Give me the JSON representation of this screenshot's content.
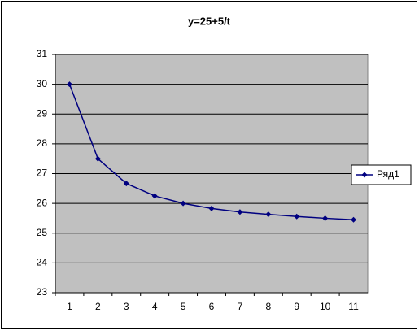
{
  "chart_data": {
    "type": "line",
    "title": "y=25+5/t",
    "categories": [
      "1",
      "2",
      "3",
      "4",
      "5",
      "6",
      "7",
      "8",
      "9",
      "10",
      "11"
    ],
    "series": [
      {
        "name": "Ряд1",
        "color": "#000080",
        "values": [
          30,
          27.5,
          26.67,
          26.25,
          26,
          25.83,
          25.71,
          25.63,
          25.56,
          25.5,
          25.45
        ]
      }
    ],
    "ylim": [
      23,
      31
    ],
    "yticks": [
      23,
      24,
      25,
      26,
      27,
      28,
      29,
      30,
      31
    ],
    "grid": true,
    "legend": "right",
    "plot_background": "#c0c0c0"
  }
}
